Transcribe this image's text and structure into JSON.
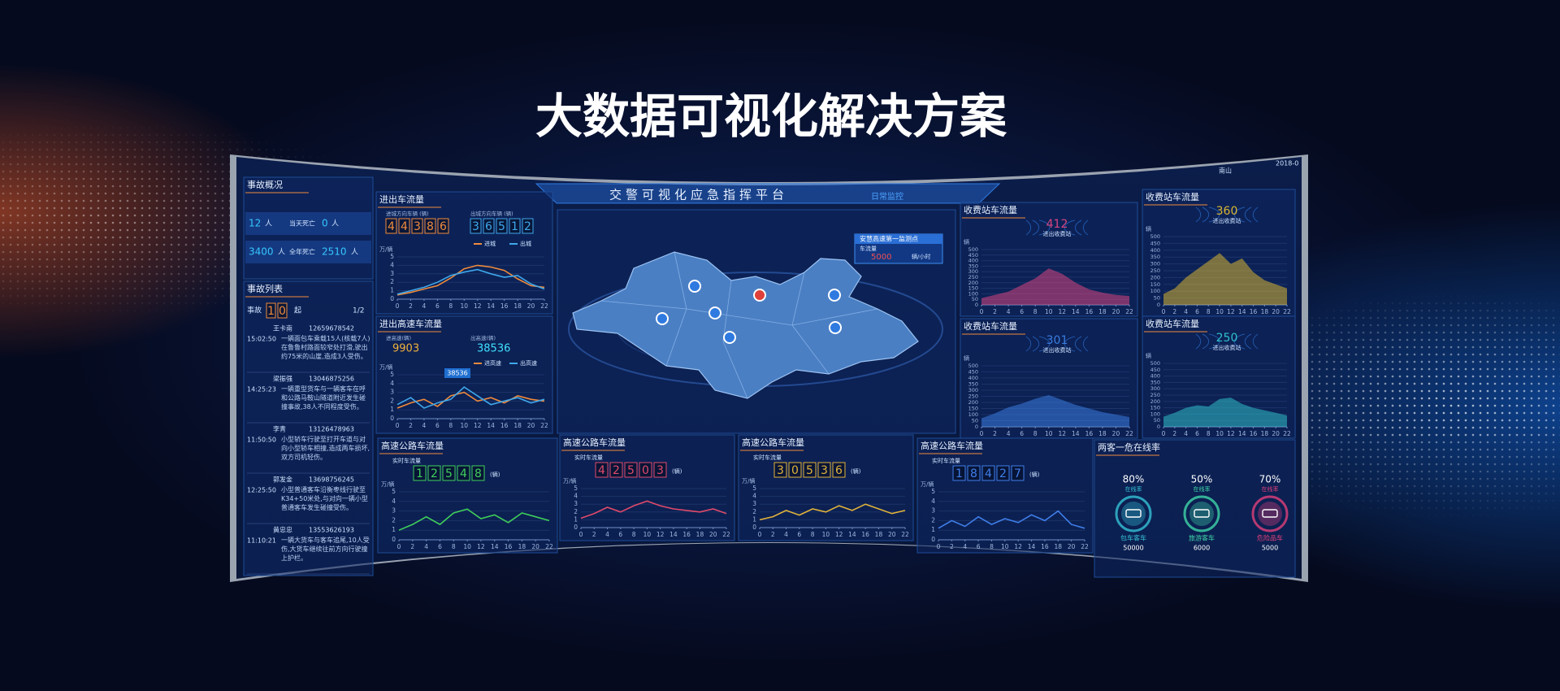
{
  "title": "大数据可视化解决方案",
  "platform": {
    "title": "交警可视化应急指挥平台",
    "mode": "日常监控",
    "user": "南山",
    "date": "2018-0"
  },
  "accident": {
    "title": "事故概况",
    "stats": [
      {
        "value": "12",
        "unit": "人"
      },
      {
        "label": "当天死亡",
        "value": "0",
        "unit": "人"
      },
      {
        "value": "3400",
        "unit": "人"
      },
      {
        "label": "全年死亡",
        "value": "2510",
        "unit": "人"
      }
    ],
    "list_title": "事故列表",
    "count_label": "事故",
    "count": "10",
    "count_unit": "起",
    "page": "1/2",
    "entries": [
      {
        "name": "王卡南",
        "phone": "12659678542",
        "time": "15:02:50",
        "text": "一辆面包车乘载15人(核载7人)在鲁鲁村路面较窄处打滑,驶出约75米的山崖,造成3人受伤。"
      },
      {
        "name": "梁振强",
        "phone": "13046875256",
        "time": "14:25:23",
        "text": "一辆重型货车与一辆客车在呼和公路马鞍山隧道附近发生碰撞事故,38人不同程度受伤。"
      },
      {
        "name": "李青",
        "phone": "13126478963",
        "time": "11:50:50",
        "text": "小型轿车行驶至打开车道与对向小型轿车相撞,造成两车损坏,双方司机轻伤。"
      },
      {
        "name": "郭发金",
        "phone": "13698756245",
        "time": "12:25:50",
        "text": "小型普通客车沿衡枣线行驶至K34+50米处,与对向一辆小型普通客车发生碰撞受伤。"
      },
      {
        "name": "黄忠忠",
        "phone": "13553626193",
        "time": "11:10:21",
        "text": "一辆大货车与客车追尾,10人受伤,大货车继续往前方向行驶撞上护栏。"
      }
    ]
  },
  "flow": [
    {
      "title": "进出车流量",
      "counters": [
        {
          "label": "进城方向车辆 (辆)",
          "digits": "44386"
        },
        {
          "label": "出城方向车辆 (辆)",
          "digits": "36512"
        }
      ],
      "yunit": "万/辆",
      "ylim": [
        0,
        5
      ],
      "yticks": [
        0,
        1,
        2,
        3,
        4,
        5
      ],
      "xlim": [
        0,
        22
      ],
      "xticks": [
        0,
        2,
        4,
        6,
        8,
        10,
        12,
        14,
        16,
        18,
        20,
        22
      ],
      "x": [
        0,
        2,
        4,
        6,
        8,
        10,
        12,
        14,
        16,
        18,
        20,
        22
      ],
      "series": [
        {
          "name": "进城",
          "color": "#f08a3c",
          "values": [
            0.5,
            0.8,
            1.2,
            1.6,
            2.5,
            3.6,
            4.0,
            3.8,
            3.4,
            2.4,
            1.6,
            1.4
          ]
        },
        {
          "name": "出城",
          "color": "#3fa7ea",
          "values": [
            0.6,
            1.0,
            1.4,
            2.0,
            2.8,
            3.2,
            3.5,
            3.0,
            2.6,
            2.8,
            1.8,
            1.2
          ]
        }
      ]
    },
    {
      "title": "进出高速车流量",
      "counters": [
        {
          "label": "进高速(辆)",
          "digits": "9903"
        },
        {
          "label": "出高速(辆)",
          "digits": "38536"
        }
      ],
      "callout": "38536",
      "yunit": "万/辆",
      "ylim": [
        0,
        5
      ],
      "yticks": [
        0,
        1,
        2,
        3,
        4,
        5
      ],
      "xlim": [
        0,
        22
      ],
      "xticks": [
        0,
        2,
        4,
        6,
        8,
        10,
        12,
        14,
        16,
        18,
        20,
        22
      ],
      "x": [
        0,
        2,
        4,
        6,
        8,
        10,
        12,
        14,
        16,
        18,
        20,
        22
      ],
      "series": [
        {
          "name": "进高速",
          "color": "#f08a3c",
          "values": [
            1.2,
            1.8,
            2.2,
            1.4,
            2.6,
            3.0,
            2.0,
            2.4,
            1.8,
            2.6,
            2.2,
            2.0
          ]
        },
        {
          "name": "出高速",
          "color": "#3fa7ea",
          "values": [
            1.6,
            2.4,
            1.2,
            1.8,
            2.2,
            3.6,
            2.6,
            1.6,
            2.0,
            2.4,
            1.8,
            2.2
          ]
        }
      ]
    }
  ],
  "map": {
    "callout_title": "安慧高速第一监测点",
    "callout_label": "车流量",
    "callout_value": "5000",
    "callout_unit": "辆/小时"
  },
  "toll": [
    {
      "title": "收费站车流量",
      "value": "412",
      "sub": "进出收费站",
      "yunit": "辆",
      "color": "#d8457f",
      "ylim": [
        0,
        500
      ],
      "yticks": [
        0,
        50,
        100,
        150,
        200,
        250,
        300,
        350,
        400,
        450,
        500
      ],
      "xlim": [
        0,
        22
      ],
      "xticks": [
        0,
        2,
        4,
        6,
        8,
        10,
        12,
        14,
        16,
        18,
        20,
        22
      ],
      "x": [
        0,
        2,
        4,
        6,
        8,
        10,
        12,
        14,
        16,
        18,
        20,
        22
      ],
      "values": [
        60,
        90,
        120,
        180,
        240,
        330,
        280,
        200,
        140,
        110,
        90,
        80
      ]
    },
    {
      "title": "收费站车流量",
      "value": "360",
      "sub": "进出收费站",
      "yunit": "辆",
      "color": "#d9b531",
      "ylim": [
        0,
        500
      ],
      "yticks": [
        0,
        50,
        100,
        150,
        200,
        250,
        300,
        350,
        400,
        450,
        500
      ],
      "xlim": [
        0,
        22
      ],
      "xticks": [
        0,
        2,
        4,
        6,
        8,
        10,
        12,
        14,
        16,
        18,
        20,
        22
      ],
      "x": [
        0,
        2,
        4,
        6,
        8,
        10,
        12,
        14,
        16,
        18,
        20,
        22
      ],
      "values": [
        80,
        120,
        200,
        260,
        320,
        380,
        300,
        340,
        240,
        180,
        150,
        120
      ]
    },
    {
      "title": "收费站车流量",
      "value": "301",
      "sub": "进出收费站",
      "yunit": "辆",
      "color": "#3a7de0",
      "ylim": [
        0,
        500
      ],
      "yticks": [
        0,
        50,
        100,
        150,
        200,
        250,
        300,
        350,
        400,
        450,
        500
      ],
      "xlim": [
        0,
        22
      ],
      "xticks": [
        0,
        2,
        4,
        6,
        8,
        10,
        12,
        14,
        16,
        18,
        20,
        22
      ],
      "x": [
        0,
        2,
        4,
        6,
        8,
        10,
        12,
        14,
        16,
        18,
        20,
        22
      ],
      "values": [
        70,
        110,
        160,
        190,
        230,
        260,
        220,
        180,
        150,
        120,
        100,
        80
      ]
    },
    {
      "title": "收费站车流量",
      "value": "250",
      "sub": "进出收费站",
      "yunit": "辆",
      "color": "#2fbfc9",
      "ylim": [
        0,
        500
      ],
      "yticks": [
        0,
        50,
        100,
        150,
        200,
        250,
        300,
        350,
        400,
        450,
        500
      ],
      "xlim": [
        0,
        22
      ],
      "xticks": [
        0,
        2,
        4,
        6,
        8,
        10,
        12,
        14,
        16,
        18,
        20,
        22
      ],
      "x": [
        0,
        2,
        4,
        6,
        8,
        10,
        12,
        14,
        16,
        18,
        20,
        22
      ],
      "values": [
        80,
        110,
        150,
        170,
        160,
        220,
        230,
        180,
        150,
        130,
        110,
        90
      ]
    }
  ],
  "highway": [
    {
      "title": "高速公路车流量",
      "sub": "实时车流量",
      "digits": "12548",
      "unit": "(辆)",
      "color": "#3fcf5a",
      "yunit": "万/辆",
      "ylim": [
        0,
        5
      ],
      "yticks": [
        0,
        1,
        2,
        3,
        4,
        5
      ],
      "xlim": [
        0,
        22
      ],
      "xticks": [
        0,
        2,
        4,
        6,
        8,
        10,
        12,
        14,
        16,
        18,
        20,
        22
      ],
      "x": [
        0,
        2,
        4,
        6,
        8,
        10,
        12,
        14,
        16,
        18,
        20,
        22
      ],
      "values": [
        1.0,
        1.6,
        2.4,
        1.6,
        2.8,
        3.2,
        2.2,
        2.6,
        1.8,
        2.8,
        2.4,
        2.0
      ]
    },
    {
      "title": "高速公路车流量",
      "sub": "实时车流量",
      "digits": "42503",
      "unit": "(辆)",
      "color": "#e04a6a",
      "yunit": "万/辆",
      "ylim": [
        0,
        5
      ],
      "yticks": [
        0,
        1,
        2,
        3,
        4,
        5
      ],
      "xlim": [
        0,
        22
      ],
      "xticks": [
        0,
        2,
        4,
        6,
        8,
        10,
        12,
        14,
        16,
        18,
        20,
        22
      ],
      "x": [
        0,
        2,
        4,
        6,
        8,
        10,
        12,
        14,
        16,
        18,
        20,
        22
      ],
      "values": [
        1.2,
        1.8,
        2.6,
        2.0,
        2.8,
        3.4,
        2.8,
        2.4,
        2.2,
        2.0,
        2.4,
        1.8
      ]
    },
    {
      "title": "高速公路车流量",
      "sub": "实时车流量",
      "digits": "30536",
      "unit": "(辆)",
      "color": "#e0b23a",
      "yunit": "万/辆",
      "ylim": [
        0,
        5
      ],
      "yticks": [
        0,
        1,
        2,
        3,
        4,
        5
      ],
      "xlim": [
        0,
        22
      ],
      "xticks": [
        0,
        2,
        4,
        6,
        8,
        10,
        12,
        14,
        16,
        18,
        20,
        22
      ],
      "x": [
        0,
        2,
        4,
        6,
        8,
        10,
        12,
        14,
        16,
        18,
        20,
        22
      ],
      "values": [
        1.0,
        1.4,
        2.2,
        1.6,
        2.4,
        2.0,
        2.8,
        2.2,
        3.0,
        2.4,
        1.8,
        2.2
      ]
    },
    {
      "title": "高速公路车流量",
      "sub": "实时车流量",
      "digits": "18427",
      "unit": "(辆)",
      "color": "#3f7ee8",
      "yunit": "万/辆",
      "ylim": [
        0,
        5
      ],
      "yticks": [
        0,
        1,
        2,
        3,
        4,
        5
      ],
      "xlim": [
        0,
        22
      ],
      "xticks": [
        0,
        2,
        4,
        6,
        8,
        10,
        12,
        14,
        16,
        18,
        20,
        22
      ],
      "x": [
        0,
        2,
        4,
        6,
        8,
        10,
        12,
        14,
        16,
        18,
        20,
        22
      ],
      "values": [
        1.2,
        2.0,
        1.4,
        2.4,
        1.6,
        2.2,
        1.8,
        2.6,
        2.0,
        3.0,
        1.6,
        1.2
      ]
    }
  ],
  "online": {
    "title": "两客一危在线率",
    "items": [
      {
        "pct": "80%",
        "sub": "在线率",
        "name": "包车客车",
        "count": "50000",
        "color": "#35c2d6"
      },
      {
        "pct": "50%",
        "sub": "在线率",
        "name": "旅游客车",
        "count": "6000",
        "color": "#3fd6a8"
      },
      {
        "pct": "70%",
        "sub": "在线率",
        "name": "危险品车",
        "count": "5000",
        "color": "#e0407a"
      }
    ]
  }
}
